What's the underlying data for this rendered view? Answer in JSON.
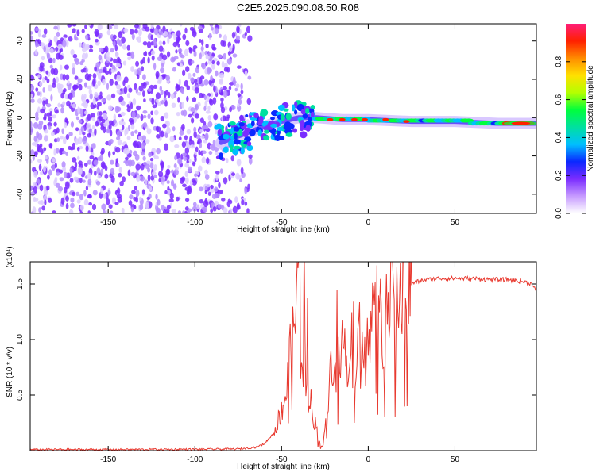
{
  "title": "C2E5.2025.090.08.50.R08",
  "colors": {
    "snr_line": "#e8392f",
    "scatter_noise": "#7b2ff0",
    "colorbar": [
      "#ffffff",
      "#c79bff",
      "#7a2cff",
      "#0a28ff",
      "#00bfff",
      "#00e0a0",
      "#00ff3c",
      "#b4ff00",
      "#ffe000",
      "#ff8c00",
      "#ff2000",
      "#ff1e78"
    ]
  },
  "chart_data": [
    {
      "type": "heatmap",
      "xlabel": "Height of straight line (km)",
      "ylabel": "Frequency (Hz)",
      "xlim": [
        -195,
        97
      ],
      "ylim": [
        -50,
        49
      ],
      "xticks": [
        -150,
        -100,
        -50,
        0,
        50
      ],
      "yticks": [
        -40,
        -20,
        0,
        20,
        40
      ],
      "ytick_labels": [
        "-40",
        "-20",
        "0",
        "20",
        "40"
      ],
      "colorbar": {
        "label": "Normalized spectral amplitude",
        "range": [
          0,
          1
        ],
        "ticks": [
          0.0,
          0.2,
          0.4,
          0.6,
          0.8
        ],
        "tick_labels": [
          "0.0",
          "0.2",
          "0.4",
          "0.6",
          "0.8"
        ]
      },
      "features": {
        "noise_region_x": [
          -195,
          -65
        ],
        "signal_track": [
          {
            "x": -85,
            "y": -13
          },
          {
            "x": -70,
            "y": -8
          },
          {
            "x": -55,
            "y": -3
          },
          {
            "x": -40,
            "y": 0
          },
          {
            "x": -30,
            "y": 0
          },
          {
            "x": -15,
            "y": -1
          },
          {
            "x": 0,
            "y": -1
          },
          {
            "x": 25,
            "y": -2
          },
          {
            "x": 50,
            "y": -2
          },
          {
            "x": 75,
            "y": -3
          },
          {
            "x": 97,
            "y": -3
          }
        ],
        "peak_x": [
          85,
          97
        ]
      }
    },
    {
      "type": "line",
      "xlabel": "Height of straight line (km)",
      "ylabel": "SNR (10 * v/v)",
      "yscale_label": "(x10⁴)",
      "xlim": [
        -195,
        97
      ],
      "ylim": [
        0,
        1.7
      ],
      "xticks": [
        -150,
        -100,
        -50,
        0,
        50
      ],
      "yticks": [
        0.5,
        1.0,
        1.5
      ],
      "ytick_labels": [
        "0.5",
        "1.0",
        "1.5"
      ],
      "series": [
        {
          "x": [
            -195,
            -150,
            -100,
            -75,
            -65,
            -60,
            -55,
            -50,
            -47,
            -45,
            -43,
            -41,
            -40,
            -39,
            -38,
            -37,
            -36,
            -35,
            -34,
            -32,
            -30,
            -28,
            -26,
            -25,
            -24,
            -22,
            -20,
            -18,
            -16,
            -14,
            -12,
            -10,
            -8,
            -6,
            -4,
            -2,
            0,
            2,
            4,
            6,
            8,
            10,
            12,
            14,
            16,
            18,
            20,
            22,
            25,
            30,
            35,
            40,
            50,
            60,
            70,
            80,
            90,
            95,
            97
          ],
          "y": [
            0.01,
            0.01,
            0.012,
            0.015,
            0.03,
            0.06,
            0.15,
            0.35,
            0.55,
            0.85,
            1.05,
            1.35,
            1.7,
            1.3,
            0.9,
            1.45,
            0.7,
            1.1,
            0.5,
            0.35,
            0.2,
            0.1,
            0.05,
            0.15,
            0.4,
            0.7,
            0.9,
            1.2,
            0.8,
            1.05,
            0.75,
            1.35,
            1.0,
            0.95,
            1.15,
            1.1,
            1.25,
            1.1,
            1.2,
            1.3,
            1.05,
            1.2,
            1.35,
            1.3,
            1.4,
            1.4,
            1.5,
            1.45,
            1.5,
            1.53,
            1.54,
            1.55,
            1.55,
            1.55,
            1.54,
            1.54,
            1.52,
            1.5,
            1.43
          ]
        }
      ]
    }
  ]
}
